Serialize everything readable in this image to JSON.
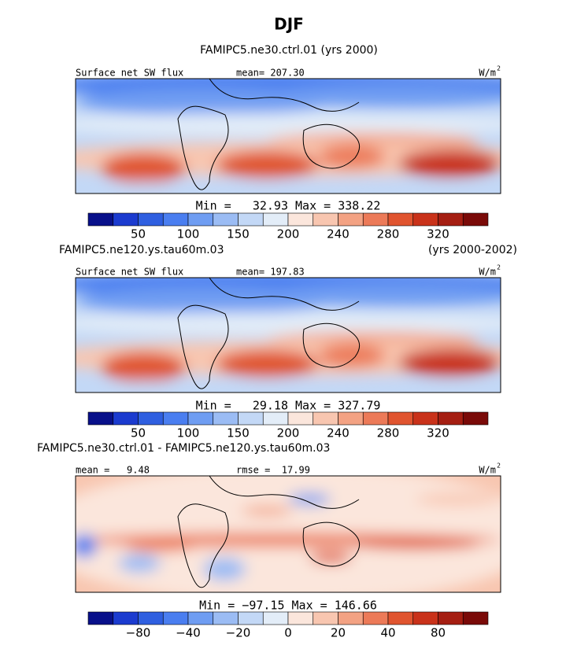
{
  "title": "DJF",
  "panels": [
    {
      "case": "FAMIPC5.ne30.ctrl.01 (yrs 2000)",
      "header_left": "Surface net SW flux",
      "header_center": "mean= 207.30",
      "units": "W/m",
      "units_sup": "2",
      "min_max": "Min =   32.93 Max = 338.22",
      "colorbar_labels": [
        "50",
        "100",
        "150",
        "200",
        "240",
        "280",
        "320"
      ]
    },
    {
      "case": "FAMIPC5.ne120.ys.tau60m.03",
      "case_years": "(yrs 2000-2002)",
      "header_left": "Surface net SW flux",
      "header_center": "mean= 197.83",
      "units": "W/m",
      "units_sup": "2",
      "min_max": "Min =   29.18 Max = 327.79",
      "colorbar_labels": [
        "50",
        "100",
        "150",
        "200",
        "240",
        "280",
        "320"
      ]
    },
    {
      "case": "FAMIPC5.ne30.ctrl.01 - FAMIPC5.ne120.ys.tau60m.03",
      "header_left": "mean =   9.48",
      "header_center": "rmse =  17.99",
      "units": "W/m",
      "units_sup": "2",
      "min_max": "Min = −97.15 Max = 146.66",
      "colorbar_labels": [
        "−80",
        "−40",
        "−20",
        "0",
        "20",
        "40",
        "80"
      ]
    }
  ]
}
